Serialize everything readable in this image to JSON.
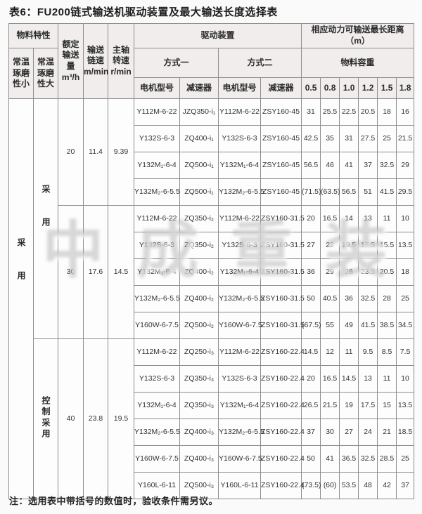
{
  "page": {
    "title": "表6：FU200链式输送机驱动装置及最大输送长度选择表",
    "note": "注：选用表中带括号的数值时，验收条件需另议。",
    "watermark": "中成重装"
  },
  "table": {
    "header": {
      "material_props": "物料特性",
      "col_small": "常温\n琢磨\n性小",
      "col_large": "常温\n琢磨\n性大",
      "rated_capacity": "额定\n输送\n量m³/h",
      "chain_speed": "输送\n链速\nm/min",
      "spindle_speed": "主轴\n转速\nr/min",
      "drive_device": "驱动装置",
      "mode1": "方式一",
      "mode2": "方式二",
      "motor_model": "电机型号",
      "reducer": "减速器",
      "max_distance": "相应动力可输送最长距离（m）",
      "bulk_density": "物料容重",
      "density_values": [
        "0.5",
        "0.8",
        "1.0",
        "1.2",
        "1.5",
        "1.8"
      ]
    },
    "row_labels": {
      "col1": "采用",
      "col2_group12": "采用",
      "col2_group3": "控制采用"
    },
    "groups": [
      {
        "capacity": "20",
        "chain_speed": "11.4",
        "spindle_speed": "9.39",
        "rows": [
          {
            "motor1": "Y112M-6-22",
            "reducer1": "JZQ350-i₁",
            "motor2": "Y112M-6-22",
            "reducer2": "ZSY160-45",
            "d": [
              "31",
              "25.5",
              "22.5",
              "20.5",
              "18",
              "16"
            ]
          },
          {
            "motor1": "Y132S-6-3",
            "reducer1": "ZQ400-i₁",
            "motor2": "Y132S-6-3",
            "reducer2": "ZSY160-45",
            "d": [
              "42.5",
              "35",
              "31",
              "27.5",
              "25",
              "21.5"
            ]
          },
          {
            "motor1": "Y132M₁-6-4",
            "reducer1": "ZQ500-i₁",
            "motor2": "Y132M₁-6-4",
            "reducer2": "ZSY160-45",
            "d": [
              "56.5",
              "46",
              "41",
              "37",
              "32.5",
              "29"
            ]
          },
          {
            "motor1": "Y132M₂-6-5.5",
            "reducer1": "ZQ500-i₁",
            "motor2": "Y132M₂-6-5.5",
            "reducer2": "ZSY160-45",
            "d": [
              "(71.5)",
              "(63.5)",
              "56.5",
              "51",
              "41.5",
              "29.5"
            ]
          }
        ]
      },
      {
        "capacity": "30",
        "chain_speed": "17.6",
        "spindle_speed": "14.5",
        "rows": [
          {
            "motor1": "Y112M-6-22",
            "reducer1": "ZQ350-i₂",
            "motor2": "Y112M-6-22",
            "reducer2": "ZSY160-31.5",
            "d": [
              "20",
              "16.5",
              "14",
              "13",
              "11",
              "10"
            ]
          },
          {
            "motor1": "Y132S-6-3",
            "reducer1": "ZQ350-i₂",
            "motor2": "Y132S-6-3",
            "reducer2": "ZSY160-31.5",
            "d": [
              "27",
              "22",
              "19.5",
              "17.5",
              "15.5",
              "13.5"
            ]
          },
          {
            "motor1": "Y132M₁-6-4",
            "reducer1": "ZQ400-i₂",
            "motor2": "Y132M₁-6-4",
            "reducer2": "ZSY160-31.5",
            "d": [
              "36",
              "29",
              "26",
              "23.5",
              "20.5",
              "18"
            ]
          },
          {
            "motor1": "Y132M₂-6-5.5",
            "reducer1": "ZQ400-i₂",
            "motor2": "Y132M₂-6-5.5",
            "reducer2": "ZSY160-31.5",
            "d": [
              "50",
              "40.5",
              "36",
              "32.5",
              "28",
              "25"
            ]
          },
          {
            "motor1": "Y160W-6-7.5",
            "reducer1": "ZQ500-i₂",
            "motor2": "Y160W-6-7.5",
            "reducer2": "ZSY160-31.5",
            "d": [
              "(67.5)",
              "55",
              "49",
              "41.5",
              "38.5",
              "34.5"
            ]
          }
        ]
      },
      {
        "capacity": "40",
        "chain_speed": "23.8",
        "spindle_speed": "19.5",
        "rows": [
          {
            "motor1": "Y112M-6-22",
            "reducer1": "ZQ250-i₃",
            "motor2": "Y112M-6-22",
            "reducer2": "ZSY160-22.4",
            "d": [
              "14.5",
              "12",
              "11",
              "9.5",
              "8.5",
              "7.5"
            ]
          },
          {
            "motor1": "Y132S-6-3",
            "reducer1": "ZQ350-i₃",
            "motor2": "Y132S-6-3",
            "reducer2": "ZSY160-22.4",
            "d": [
              "20",
              "16.5",
              "14.5",
              "13",
              "11",
              "10"
            ]
          },
          {
            "motor1": "Y132M₁-6-4",
            "reducer1": "ZQ350-i₃",
            "motor2": "Y132M₁-6-4",
            "reducer2": "ZSY160-22.4",
            "d": [
              "26.5",
              "21.5",
              "19",
              "17.5",
              "15",
              "13.5"
            ]
          },
          {
            "motor1": "Y132M₂-6-5.5",
            "reducer1": "ZQ400-i₃",
            "motor2": "Y132M₂-6-5.5",
            "reducer2": "ZSY160-22.4",
            "d": [
              "37",
              "30",
              "27",
              "24",
              "21",
              "18.5"
            ]
          },
          {
            "motor1": "Y160W-6-7.5",
            "reducer1": "ZQ400-i₃",
            "motor2": "Y160W-6-7.5",
            "reducer2": "ZSY160-22.4",
            "d": [
              "50",
              "41",
              "36.5",
              "32.5",
              "28.5",
              "25"
            ]
          },
          {
            "motor1": "Y160L-6-11",
            "reducer1": "ZQ500-i₃",
            "motor2": "Y160L-6-11",
            "reducer2": "ZSY160-22.4",
            "d": [
              "(73.5)",
              "(60)",
              "53.5",
              "48",
              "42",
              "37"
            ]
          }
        ]
      }
    ]
  }
}
